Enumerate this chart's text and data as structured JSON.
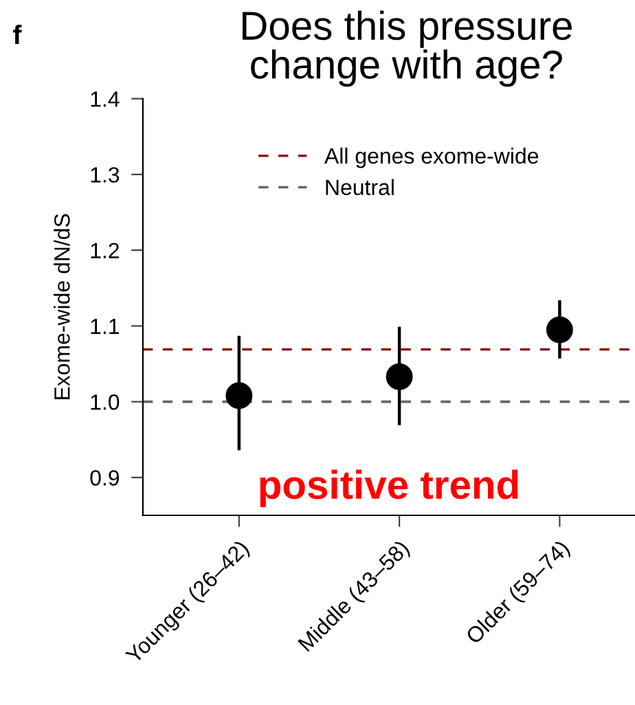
{
  "chart_data": {
    "type": "scatter",
    "title": "Does this pressure change with age?",
    "ylabel": "Exome-wide dN/dS",
    "categories": [
      "Younger (26–42)",
      "Middle (43–58)",
      "Older (59–74)"
    ],
    "values": [
      1.008,
      1.033,
      1.095
    ],
    "errors": [
      [
        0.936,
        1.087
      ],
      [
        0.969,
        1.099
      ],
      [
        1.057,
        1.134
      ]
    ],
    "color": "#000000",
    "marker": "circle",
    "ylim": [
      0.85,
      1.4
    ],
    "yticks": [
      0.9,
      {
        "value": 1.0,
        "label": "1.0"
      },
      1.1,
      1.2,
      1.3,
      1.4
    ],
    "ref_lines": [
      {
        "axis": "y",
        "value": 1.069,
        "label": "All genes exome-wide",
        "color": "#8b1a1a",
        "line_style": "dashed"
      },
      {
        "axis": "y",
        "value": 1.0,
        "label": "Neutral",
        "color": "#666666",
        "line_style": "dashed"
      }
    ],
    "annotations": [
      "f",
      "positive trend"
    ],
    "legend": "top",
    "grid": false
  }
}
